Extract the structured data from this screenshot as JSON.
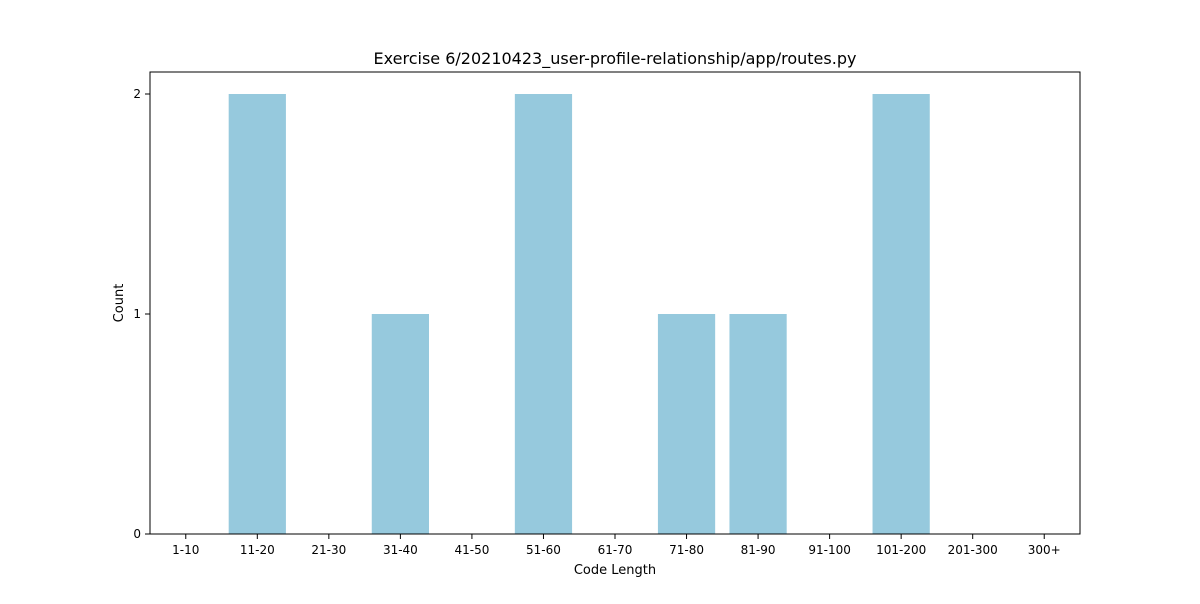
{
  "chart_data": {
    "type": "bar",
    "title": "Exercise 6/20210423_user-profile-relationship/app/routes.py",
    "xlabel": "Code Length",
    "ylabel": "Count",
    "categories": [
      "1-10",
      "11-20",
      "21-30",
      "31-40",
      "41-50",
      "51-60",
      "61-70",
      "71-80",
      "81-90",
      "91-100",
      "101-200",
      "201-300",
      "300+"
    ],
    "values": [
      0,
      2,
      0,
      1,
      0,
      2,
      0,
      1,
      1,
      0,
      2,
      0,
      0
    ],
    "ylim": [
      0,
      2.1
    ],
    "yticks": [
      "0",
      "1",
      "2"
    ],
    "bar_color": "#96c9dd",
    "grid": false,
    "legend": false
  }
}
